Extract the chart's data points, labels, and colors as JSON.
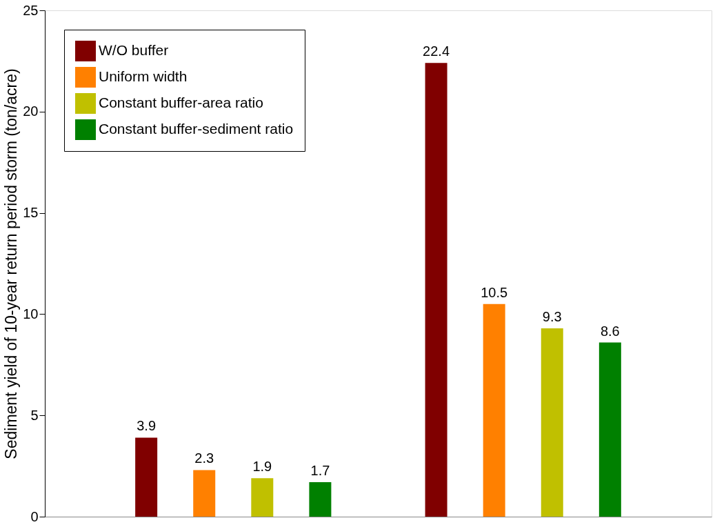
{
  "chart_data": {
    "type": "bar",
    "ylabel": "Sediment yield of 10-year return period storm (ton/acre)",
    "categories": [
      null,
      null
    ],
    "series": [
      {
        "name": "W/O buffer",
        "color": "#800000",
        "values": [
          3.9,
          22.4
        ]
      },
      {
        "name": "Uniform width",
        "color": "#ff8000",
        "values": [
          2.3,
          10.5
        ]
      },
      {
        "name": "Constant buffer-area ratio",
        "color": "#c0c000",
        "values": [
          1.9,
          9.3
        ]
      },
      {
        "name": "Constant buffer-sediment ratio",
        "color": "#008000",
        "values": [
          1.7,
          8.6
        ]
      }
    ],
    "ylim": [
      0,
      25
    ],
    "yticks": [
      0,
      5,
      10,
      15,
      20,
      25
    ],
    "data_labels": true,
    "legend": "top left",
    "grid": false
  }
}
